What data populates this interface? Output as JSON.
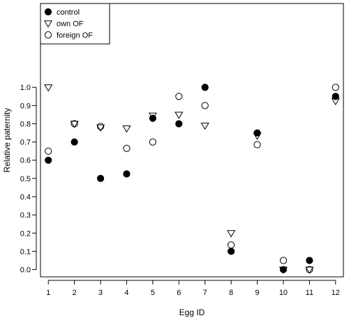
{
  "chart_data": {
    "type": "scatter",
    "xlabel": "Egg ID",
    "ylabel": "Relative paternity",
    "xlim": [
      0.7,
      12.3
    ],
    "ylim": [
      -0.04,
      1.46
    ],
    "xticks": [
      "1",
      "2",
      "3",
      "4",
      "5",
      "6",
      "7",
      "8",
      "9",
      "10",
      "11",
      "12"
    ],
    "yticks": [
      "0.0",
      "0.1",
      "0.2",
      "0.3",
      "0.4",
      "0.5",
      "0.6",
      "0.7",
      "0.8",
      "0.9",
      "1.0"
    ],
    "legend_position": "top-left",
    "series": [
      {
        "name": "control",
        "marker": "filled-circle",
        "x": [
          1,
          2,
          3,
          4,
          5,
          6,
          7,
          8,
          9,
          10,
          11,
          12
        ],
        "y": [
          0.6,
          0.7,
          0.5,
          0.525,
          0.83,
          0.8,
          1.0,
          0.1,
          0.75,
          0.0,
          0.05,
          0.95
        ]
      },
      {
        "name": "own OF",
        "marker": "open-triangle-down",
        "x": [
          1,
          2,
          3,
          4,
          5,
          6,
          7,
          8,
          9,
          10,
          11,
          12
        ],
        "y": [
          1.0,
          0.8,
          0.78,
          0.775,
          0.845,
          0.85,
          0.79,
          0.2,
          0.735,
          0.0,
          0.0,
          0.925
        ]
      },
      {
        "name": "foreign OF",
        "marker": "open-circle",
        "x": [
          1,
          2,
          3,
          4,
          5,
          6,
          7,
          8,
          9,
          10,
          11,
          12
        ],
        "y": [
          0.65,
          0.8,
          0.785,
          0.665,
          0.7,
          0.95,
          0.9,
          0.135,
          0.685,
          0.05,
          0.0,
          1.0
        ]
      }
    ]
  },
  "colors": {
    "ink": "#000000",
    "background": "#ffffff"
  }
}
